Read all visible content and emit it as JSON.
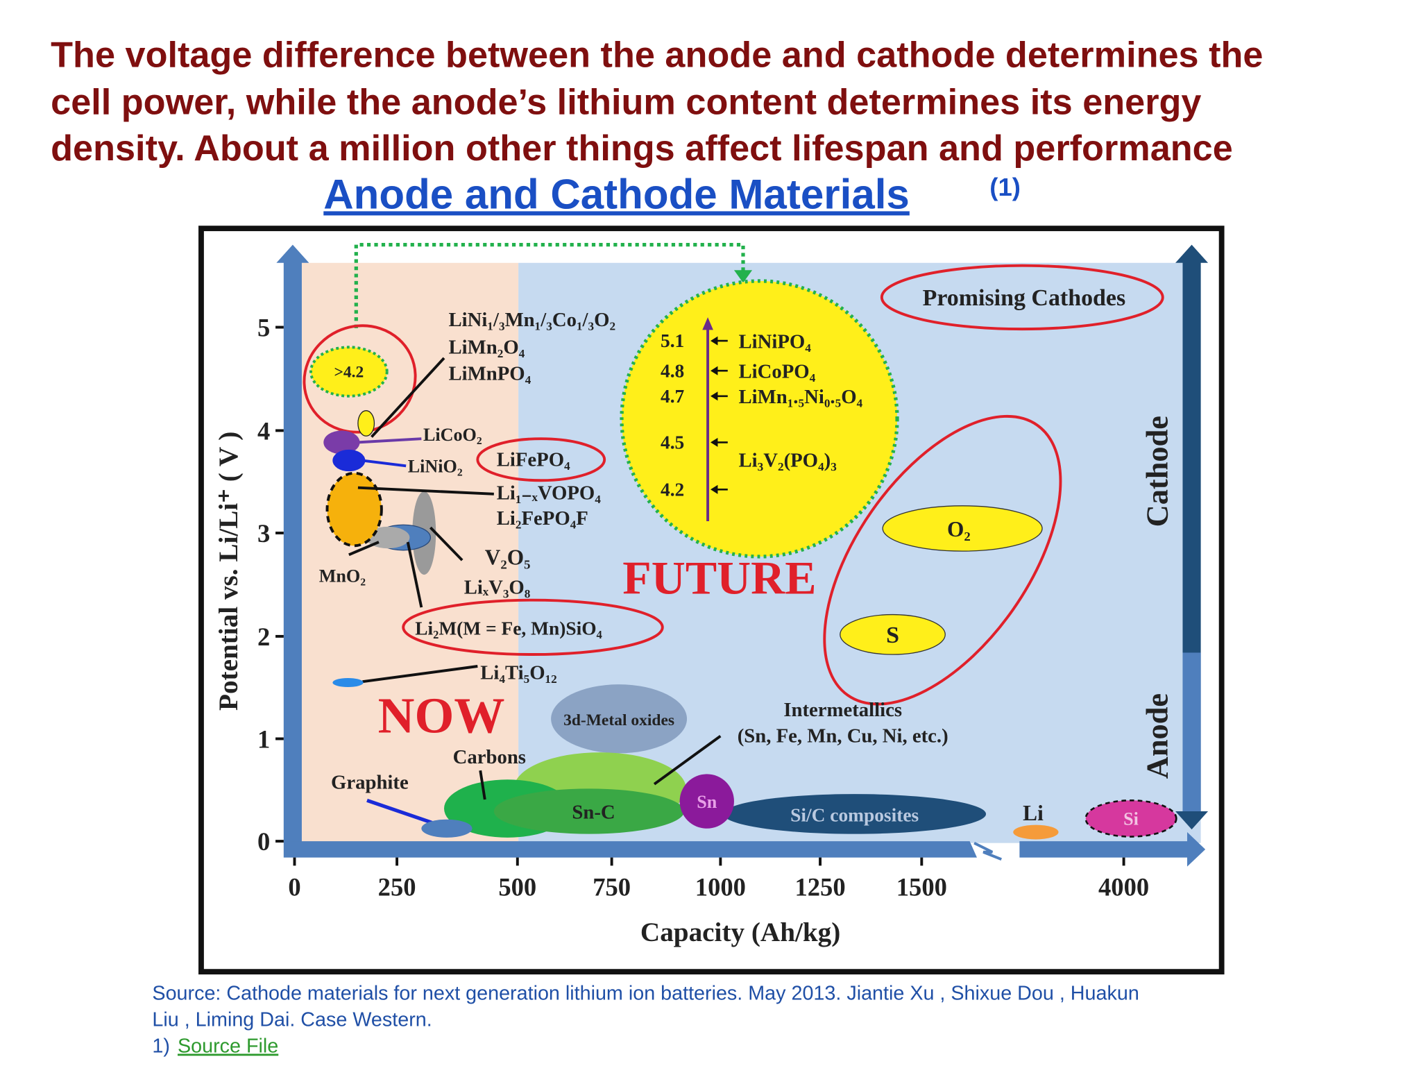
{
  "header": {
    "lines": [
      "The voltage difference between the anode and cathode determines the",
      "cell power, while the anode’s lithium content determines its energy",
      "density. About a million other things affect lifespan and performance"
    ]
  },
  "subtitle": {
    "text": "Anode and Cathode Materials",
    "note": "(1)"
  },
  "figure": {
    "y_axis_title": "Potential vs. Li/Li⁺ ( V )",
    "x_axis_title": "Capacity (Ah/kg)",
    "y_ticks": [
      0,
      1,
      2,
      3,
      4,
      5
    ],
    "x_ticks": [
      0,
      250,
      500,
      750,
      1000,
      1250,
      1500,
      4000
    ],
    "side_labels": [
      "Cathode",
      "Anode"
    ],
    "regions": [
      "NOW",
      "FUTURE"
    ],
    "future_potentials": [
      5.1,
      4.8,
      4.7,
      4.5,
      4.2
    ],
    "future_cathodes": [
      "LiNiPO₄",
      "LiCoPO₄",
      "LiMn₁.₅Ni₀.₅O₄",
      "Li₃V₂(PO₄)₃"
    ],
    "annotations": [
      ">4.2",
      "LiNi₁/₃Mn₁/₃Co₁/₃O₂",
      "LiMn₂O₄",
      "LiMnPO₄",
      "LiCoO₂",
      "LiNiO₂",
      "LiFePO₄",
      "Li₁₋ₓVOPO₄",
      "Li₂FePO₄F",
      "V₂O₅",
      "LiₓV₃O₈",
      "MnO₂",
      "Li₂M(M = Fe, Mn)SiO₄",
      "Li₄Ti₅O₁₂",
      "Promising Cathodes",
      "O₂",
      "S",
      "3d-Metal oxides",
      "Intermetallics",
      "(Sn, Fe, Mn, Cu, Ni, etc.)",
      "Carbons",
      "Graphite",
      "Sn-C",
      "Sn",
      "Si/C composites",
      "Li",
      "Si"
    ]
  },
  "source": {
    "lines": [
      "Source: Cathode materials for next generation lithium ion batteries. May 2013. Jiantie Xu , Shixue Dou , Huakun",
      "Liu , Liming Dai. Case Western."
    ],
    "footnote": "1)",
    "link": "Source File"
  }
}
